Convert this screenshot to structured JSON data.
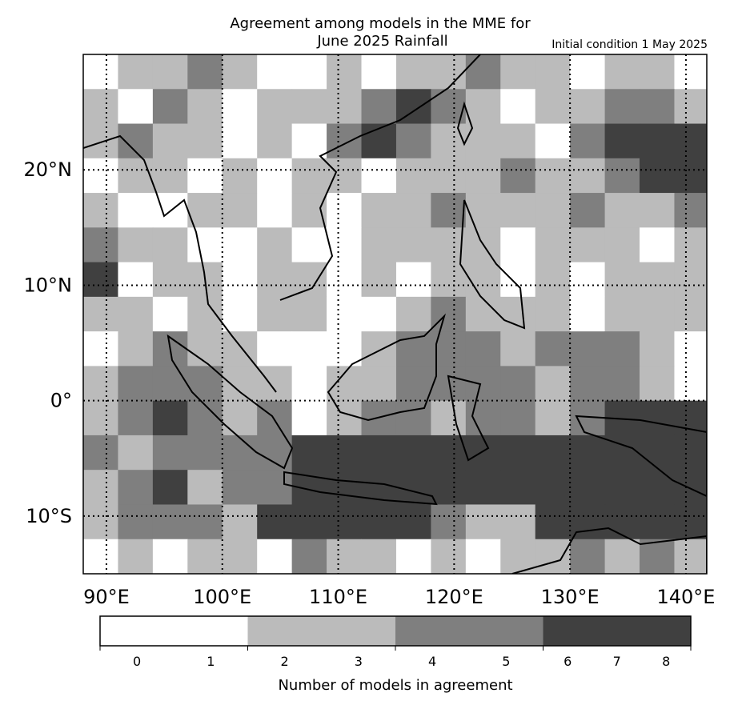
{
  "map": {
    "title": "Agreement among models in the MME for",
    "subtitle": "June 2025  Rainfall",
    "note": "Initial condition 1 May 2025",
    "xlim": [
      88,
      141.8
    ],
    "ylim": [
      -15,
      30
    ],
    "xticks": [
      {
        "value": 90,
        "label": "90°E"
      },
      {
        "value": 100,
        "label": "100°E"
      },
      {
        "value": 110,
        "label": "110°E"
      },
      {
        "value": 120,
        "label": "120°E"
      },
      {
        "value": 130,
        "label": "130°E"
      },
      {
        "value": 140,
        "label": "140°E"
      }
    ],
    "yticks": [
      {
        "value": 20,
        "label": "20°N"
      },
      {
        "value": 10,
        "label": "10°N"
      },
      {
        "value": 0,
        "label": "0°"
      },
      {
        "value": -10,
        "label": "10°S"
      }
    ],
    "grid_lon": [
      88,
      91,
      94,
      97,
      100,
      103,
      106,
      109,
      112,
      115,
      118,
      121,
      124,
      127,
      130,
      133,
      136,
      139
    ],
    "grid_lat": [
      30,
      27,
      24,
      21,
      18,
      15,
      12,
      9,
      6,
      3,
      0,
      -3,
      -6,
      -9,
      -12
    ],
    "grid": [
      [
        0,
        1,
        1,
        2,
        1,
        0,
        0,
        1,
        0,
        1,
        1,
        2,
        1,
        1,
        0,
        1,
        1,
        0
      ],
      [
        1,
        0,
        2,
        1,
        0,
        1,
        1,
        1,
        2,
        3,
        2,
        1,
        0,
        1,
        1,
        2,
        2,
        1
      ],
      [
        1,
        2,
        1,
        1,
        0,
        1,
        0,
        2,
        3,
        2,
        1,
        1,
        1,
        0,
        2,
        3,
        3,
        3
      ],
      [
        0,
        1,
        1,
        0,
        1,
        0,
        1,
        1,
        0,
        1,
        1,
        1,
        2,
        1,
        1,
        2,
        3,
        3
      ],
      [
        1,
        0,
        0,
        1,
        1,
        0,
        1,
        0,
        1,
        1,
        2,
        1,
        1,
        1,
        2,
        1,
        1,
        2
      ],
      [
        2,
        1,
        1,
        0,
        0,
        1,
        0,
        0,
        1,
        1,
        1,
        1,
        0,
        1,
        1,
        1,
        0,
        1
      ],
      [
        3,
        0,
        1,
        1,
        0,
        1,
        1,
        0,
        1,
        0,
        1,
        1,
        0,
        1,
        0,
        1,
        1,
        1
      ],
      [
        1,
        1,
        0,
        1,
        0,
        1,
        1,
        0,
        0,
        1,
        2,
        1,
        1,
        1,
        0,
        1,
        1,
        1
      ],
      [
        0,
        1,
        2,
        1,
        1,
        0,
        0,
        0,
        1,
        2,
        2,
        2,
        1,
        2,
        2,
        2,
        1,
        0
      ],
      [
        1,
        2,
        2,
        2,
        1,
        1,
        0,
        1,
        1,
        2,
        2,
        2,
        2,
        1,
        2,
        2,
        1,
        0
      ],
      [
        1,
        2,
        3,
        2,
        1,
        2,
        0,
        1,
        2,
        2,
        1,
        2,
        2,
        1,
        2,
        3,
        3,
        3
      ],
      [
        2,
        1,
        2,
        2,
        2,
        2,
        3,
        3,
        3,
        3,
        3,
        3,
        3,
        3,
        3,
        3,
        3,
        3
      ],
      [
        1,
        2,
        3,
        1,
        2,
        2,
        3,
        3,
        3,
        3,
        3,
        3,
        3,
        3,
        3,
        3,
        3,
        3
      ],
      [
        1,
        2,
        2,
        2,
        1,
        3,
        3,
        3,
        3,
        3,
        2,
        1,
        1,
        3,
        3,
        3,
        3,
        3
      ],
      [
        0,
        1,
        0,
        1,
        1,
        0,
        2,
        1,
        1,
        0,
        1,
        0,
        1,
        1,
        2,
        1,
        2,
        1
      ]
    ],
    "colorbar": {
      "label": "Number of models in agreement",
      "segments": [
        {
          "color": "#ffffff",
          "ticks": [
            0,
            1
          ]
        },
        {
          "color": "#bbbbbb",
          "ticks": [
            2,
            3
          ]
        },
        {
          "color": "#7f7f7f",
          "ticks": [
            4,
            5
          ]
        },
        {
          "color": "#404040",
          "ticks": [
            6,
            7,
            8
          ]
        }
      ]
    }
  }
}
